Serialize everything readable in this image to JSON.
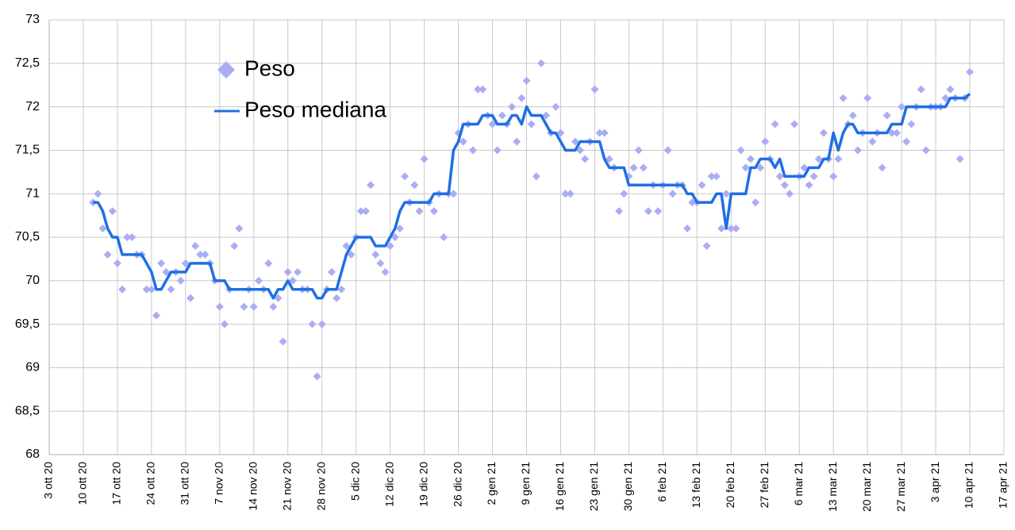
{
  "chart_data": {
    "type": "line",
    "x": [
      "2020-10-12",
      "2020-10-13",
      "2020-10-14",
      "2020-10-15",
      "2020-10-16",
      "2020-10-17",
      "2020-10-18",
      "2020-10-19",
      "2020-10-20",
      "2020-10-21",
      "2020-10-22",
      "2020-10-23",
      "2020-10-24",
      "2020-10-25",
      "2020-10-26",
      "2020-10-27",
      "2020-10-28",
      "2020-10-29",
      "2020-10-30",
      "2020-10-31",
      "2020-11-01",
      "2020-11-02",
      "2020-11-03",
      "2020-11-04",
      "2020-11-05",
      "2020-11-06",
      "2020-11-07",
      "2020-11-08",
      "2020-11-09",
      "2020-11-10",
      "2020-11-11",
      "2020-11-12",
      "2020-11-13",
      "2020-11-14",
      "2020-11-15",
      "2020-11-16",
      "2020-11-17",
      "2020-11-18",
      "2020-11-19",
      "2020-11-20",
      "2020-11-21",
      "2020-11-22",
      "2020-11-23",
      "2020-11-24",
      "2020-11-25",
      "2020-11-26",
      "2020-11-27",
      "2020-11-28",
      "2020-11-29",
      "2020-11-30",
      "2020-12-01",
      "2020-12-02",
      "2020-12-03",
      "2020-12-04",
      "2020-12-05",
      "2020-12-06",
      "2020-12-07",
      "2020-12-08",
      "2020-12-09",
      "2020-12-10",
      "2020-12-11",
      "2020-12-12",
      "2020-12-13",
      "2020-12-14",
      "2020-12-15",
      "2020-12-16",
      "2020-12-17",
      "2020-12-18",
      "2020-12-19",
      "2020-12-20",
      "2020-12-21",
      "2020-12-22",
      "2020-12-23",
      "2020-12-24",
      "2020-12-25",
      "2020-12-26",
      "2020-12-27",
      "2020-12-28",
      "2020-12-29",
      "2020-12-30",
      "2020-12-31",
      "2021-01-01",
      "2021-01-02",
      "2021-01-03",
      "2021-01-04",
      "2021-01-05",
      "2021-01-06",
      "2021-01-07",
      "2021-01-08",
      "2021-01-09",
      "2021-01-10",
      "2021-01-11",
      "2021-01-12",
      "2021-01-13",
      "2021-01-14",
      "2021-01-15",
      "2021-01-16",
      "2021-01-17",
      "2021-01-18",
      "2021-01-19",
      "2021-01-20",
      "2021-01-21",
      "2021-01-22",
      "2021-01-23",
      "2021-01-24",
      "2021-01-25",
      "2021-01-26",
      "2021-01-27",
      "2021-01-28",
      "2021-01-29",
      "2021-01-30",
      "2021-01-31",
      "2021-02-01",
      "2021-02-02",
      "2021-02-03",
      "2021-02-04",
      "2021-02-05",
      "2021-02-06",
      "2021-02-07",
      "2021-02-08",
      "2021-02-09",
      "2021-02-10",
      "2021-02-11",
      "2021-02-12",
      "2021-02-13",
      "2021-02-14",
      "2021-02-15",
      "2021-02-16",
      "2021-02-17",
      "2021-02-18",
      "2021-02-19",
      "2021-02-20",
      "2021-02-21",
      "2021-02-22",
      "2021-02-23",
      "2021-02-24",
      "2021-02-25",
      "2021-02-26",
      "2021-02-27",
      "2021-02-28",
      "2021-03-01",
      "2021-03-02",
      "2021-03-03",
      "2021-03-04",
      "2021-03-05",
      "2021-03-06",
      "2021-03-07",
      "2021-03-08",
      "2021-03-09",
      "2021-03-10",
      "2021-03-11",
      "2021-03-12",
      "2021-03-13",
      "2021-03-14",
      "2021-03-15",
      "2021-03-16",
      "2021-03-17",
      "2021-03-18",
      "2021-03-19",
      "2021-03-20",
      "2021-03-21",
      "2021-03-22",
      "2021-03-23",
      "2021-03-24",
      "2021-03-25",
      "2021-03-26",
      "2021-03-27",
      "2021-03-28",
      "2021-03-29",
      "2021-03-30",
      "2021-03-31",
      "2021-04-01",
      "2021-04-02",
      "2021-04-03",
      "2021-04-04",
      "2021-04-05",
      "2021-04-06",
      "2021-04-07",
      "2021-04-08",
      "2021-04-09",
      "2021-04-10"
    ],
    "series": [
      {
        "name": "Peso",
        "type": "scatter",
        "color": "#a9aef4",
        "values": [
          70.9,
          71.0,
          70.6,
          70.3,
          70.8,
          70.2,
          69.9,
          70.5,
          70.5,
          70.3,
          70.3,
          69.9,
          69.9,
          69.6,
          70.2,
          70.1,
          69.9,
          70.1,
          70.0,
          70.2,
          69.8,
          70.4,
          70.3,
          70.3,
          70.2,
          70.0,
          69.7,
          69.5,
          69.9,
          70.4,
          70.6,
          69.7,
          69.9,
          69.7,
          70.0,
          69.9,
          70.2,
          69.7,
          69.8,
          69.3,
          70.1,
          70.0,
          70.1,
          69.9,
          69.9,
          69.5,
          68.9,
          69.5,
          69.9,
          70.1,
          69.8,
          69.9,
          70.4,
          70.3,
          70.5,
          70.8,
          70.8,
          71.1,
          70.3,
          70.2,
          70.1,
          70.4,
          70.5,
          70.6,
          71.2,
          70.9,
          71.1,
          70.8,
          71.4,
          70.9,
          70.8,
          71.0,
          70.5,
          71.0,
          71.0,
          71.7,
          71.6,
          71.8,
          71.5,
          72.2,
          72.2,
          71.9,
          71.8,
          71.5,
          71.9,
          71.8,
          72.0,
          71.6,
          72.1,
          72.3,
          71.8,
          71.2,
          72.5,
          71.9,
          71.7,
          72.0,
          71.7,
          71.0,
          71.0,
          71.6,
          71.5,
          71.4,
          71.6,
          72.2,
          71.7,
          71.7,
          71.4,
          71.3,
          70.8,
          71.0,
          71.2,
          71.3,
          71.5,
          71.3,
          70.8,
          71.1,
          70.8,
          71.1,
          71.5,
          71.0,
          71.1,
          71.1,
          70.6,
          70.9,
          70.9,
          71.1,
          70.4,
          71.2,
          71.2,
          70.6,
          71.0,
          70.6,
          70.6,
          71.5,
          71.3,
          71.4,
          70.9,
          71.3,
          71.6,
          71.4,
          71.8,
          71.2,
          71.1,
          71.0,
          71.8,
          71.2,
          71.3,
          71.1,
          71.2,
          71.4,
          71.7,
          71.4,
          71.2,
          71.4,
          72.1,
          71.8,
          71.9,
          71.5,
          71.7,
          72.1,
          71.6,
          71.7,
          71.3,
          71.9,
          71.7,
          71.7,
          72.0,
          71.6,
          71.8,
          72.0,
          72.2,
          71.5,
          72.0,
          72.0,
          72.0,
          72.1,
          72.2,
          72.1,
          71.4,
          72.1,
          72.4
        ]
      },
      {
        "name": "Peso mediana",
        "type": "line",
        "color": "#1f6fe5",
        "values": [
          70.9,
          70.9,
          70.8,
          70.6,
          70.5,
          70.5,
          70.3,
          70.3,
          70.3,
          70.3,
          70.3,
          70.2,
          70.1,
          69.9,
          69.9,
          70.0,
          70.1,
          70.1,
          70.1,
          70.1,
          70.2,
          70.2,
          70.2,
          70.2,
          70.2,
          70.0,
          70.0,
          70.0,
          69.9,
          69.9,
          69.9,
          69.9,
          69.9,
          69.9,
          69.9,
          69.9,
          69.9,
          69.8,
          69.9,
          69.9,
          70.0,
          69.9,
          69.9,
          69.9,
          69.9,
          69.9,
          69.8,
          69.8,
          69.9,
          69.9,
          69.9,
          70.1,
          70.3,
          70.4,
          70.5,
          70.5,
          70.5,
          70.5,
          70.4,
          70.4,
          70.4,
          70.5,
          70.6,
          70.8,
          70.9,
          70.9,
          70.9,
          70.9,
          70.9,
          70.9,
          71.0,
          71.0,
          71.0,
          71.0,
          71.5,
          71.6,
          71.8,
          71.8,
          71.8,
          71.8,
          71.9,
          71.9,
          71.9,
          71.8,
          71.8,
          71.8,
          71.9,
          71.9,
          71.8,
          72.0,
          71.9,
          71.9,
          71.9,
          71.8,
          71.7,
          71.7,
          71.6,
          71.5,
          71.5,
          71.5,
          71.6,
          71.6,
          71.6,
          71.6,
          71.6,
          71.4,
          71.3,
          71.3,
          71.3,
          71.3,
          71.1,
          71.1,
          71.1,
          71.1,
          71.1,
          71.1,
          71.1,
          71.1,
          71.1,
          71.1,
          71.1,
          71.1,
          71.0,
          71.0,
          70.9,
          70.9,
          70.9,
          70.9,
          71.0,
          71.0,
          70.6,
          71.0,
          71.0,
          71.0,
          71.0,
          71.3,
          71.3,
          71.4,
          71.4,
          71.4,
          71.3,
          71.4,
          71.2,
          71.2,
          71.2,
          71.2,
          71.2,
          71.3,
          71.3,
          71.3,
          71.4,
          71.4,
          71.7,
          71.5,
          71.7,
          71.8,
          71.8,
          71.7,
          71.7,
          71.7,
          71.7,
          71.7,
          71.7,
          71.7,
          71.8,
          71.8,
          71.8,
          72.0,
          72.0,
          72.0,
          72.0,
          72.0,
          72.0,
          72.0,
          72.0,
          72.0,
          72.1,
          72.1,
          72.1,
          72.1,
          72.15
        ]
      }
    ],
    "xlim": [
      "2020-10-03",
      "2021-04-17"
    ],
    "xticks": [
      {
        "value": "2020-10-03",
        "label": "3 ott 20"
      },
      {
        "value": "2020-10-10",
        "label": "10 ott 20"
      },
      {
        "value": "2020-10-17",
        "label": "17 ott 20"
      },
      {
        "value": "2020-10-24",
        "label": "24 ott 20"
      },
      {
        "value": "2020-10-31",
        "label": "31 ott 20"
      },
      {
        "value": "2020-11-07",
        "label": "7 nov 20"
      },
      {
        "value": "2020-11-14",
        "label": "14 nov 20"
      },
      {
        "value": "2020-11-21",
        "label": "21 nov 20"
      },
      {
        "value": "2020-11-28",
        "label": "28 nov 20"
      },
      {
        "value": "2020-12-05",
        "label": "5 dic 20"
      },
      {
        "value": "2020-12-12",
        "label": "12 dic 20"
      },
      {
        "value": "2020-12-19",
        "label": "19 dic 20"
      },
      {
        "value": "2020-12-26",
        "label": "26 dic 20"
      },
      {
        "value": "2021-01-02",
        "label": "2 gen 21"
      },
      {
        "value": "2021-01-09",
        "label": "9 gen 21"
      },
      {
        "value": "2021-01-16",
        "label": "16 gen 21"
      },
      {
        "value": "2021-01-23",
        "label": "23 gen 21"
      },
      {
        "value": "2021-01-30",
        "label": "30 gen 21"
      },
      {
        "value": "2021-02-06",
        "label": "6 feb 21"
      },
      {
        "value": "2021-02-13",
        "label": "13 feb 21"
      },
      {
        "value": "2021-02-20",
        "label": "20 feb 21"
      },
      {
        "value": "2021-02-27",
        "label": "27 feb 21"
      },
      {
        "value": "2021-03-06",
        "label": "6 mar 21"
      },
      {
        "value": "2021-03-13",
        "label": "13 mar 21"
      },
      {
        "value": "2021-03-20",
        "label": "20 mar 21"
      },
      {
        "value": "2021-03-27",
        "label": "27 mar 21"
      },
      {
        "value": "2021-04-03",
        "label": "3 apr 21"
      },
      {
        "value": "2021-04-10",
        "label": "10 apr 21"
      },
      {
        "value": "2021-04-17",
        "label": "17 apr 21"
      }
    ],
    "ylim": [
      68,
      73
    ],
    "yticks": [
      68,
      {
        "value": 68.5,
        "label": "68,5"
      },
      69,
      {
        "value": 69.5,
        "label": "69,5"
      },
      70,
      {
        "value": 70.5,
        "label": "70,5"
      },
      71,
      {
        "value": 71.5,
        "label": "71,5"
      },
      72,
      {
        "value": 72.5,
        "label": "72,5"
      },
      73
    ],
    "grid": true,
    "legend": "upper left"
  }
}
